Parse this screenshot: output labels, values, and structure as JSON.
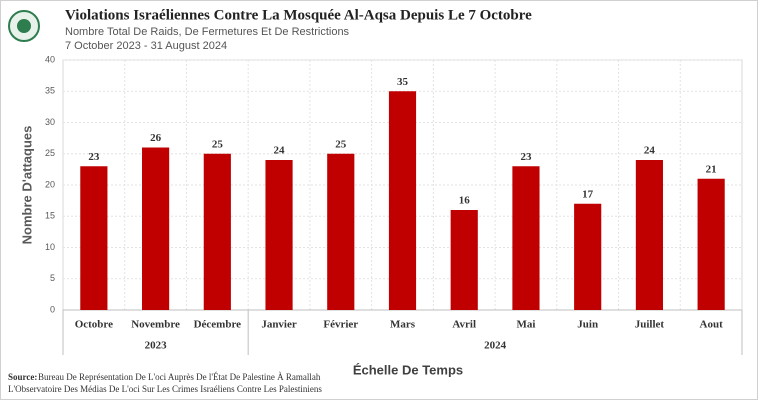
{
  "chart_data": {
    "type": "bar",
    "title": "Violations Israéliennes  Contre La Mosquée Al-Aqsa  Depuis  Le 7 Octobre",
    "subtitle": "Nombre Total De Raids, De Fermetures Et De Restrictions",
    "date_range": "7 October 2023 -   31 August 2024",
    "ylabel": "Nombre D'attaques",
    "xlabel": "Échelle De Temps",
    "categories": [
      "Octobre",
      "Novembre",
      "Décembre",
      "Janvier",
      "Février",
      "Mars",
      "Avril",
      "Mai",
      "Juin",
      "Juillet",
      "Aout"
    ],
    "values": [
      23,
      26,
      25,
      24,
      25,
      35,
      16,
      23,
      17,
      24,
      21
    ],
    "category_groups": [
      {
        "label": "2023",
        "categories": [
          "Octobre",
          "Novembre",
          "Décembre"
        ]
      },
      {
        "label": "2024",
        "categories": [
          "Janvier",
          "Février",
          "Mars",
          "Avril",
          "Mai",
          "Juin",
          "Juillet",
          "Aout"
        ]
      }
    ],
    "color": "#c00000",
    "ylim": [
      0,
      40
    ],
    "yticks": [
      0,
      5,
      10,
      15,
      20,
      25,
      30,
      35,
      40
    ],
    "grid": true,
    "source_label": "Source:",
    "source_text": "Bureau De Représentation De L'oci Auprès De l'État De Palestine À Ramallah",
    "source_line2": "L'Observatoire Des Médias De L'oci  Sur Les Crimes Israéliens Contre Les Palestiniens"
  }
}
